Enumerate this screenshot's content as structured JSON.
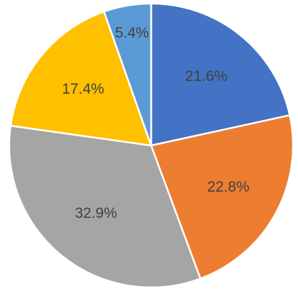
{
  "chart_data": {
    "type": "pie",
    "values": [
      21.6,
      22.8,
      32.9,
      17.4,
      5.4
    ],
    "value_labels": [
      "21.6%",
      "22.8%",
      "32.9%",
      "17.4%",
      "5.4%"
    ],
    "colors": [
      "#4472c4",
      "#ed7d31",
      "#a5a5a5",
      "#ffc000",
      "#5b9bd5"
    ]
  }
}
